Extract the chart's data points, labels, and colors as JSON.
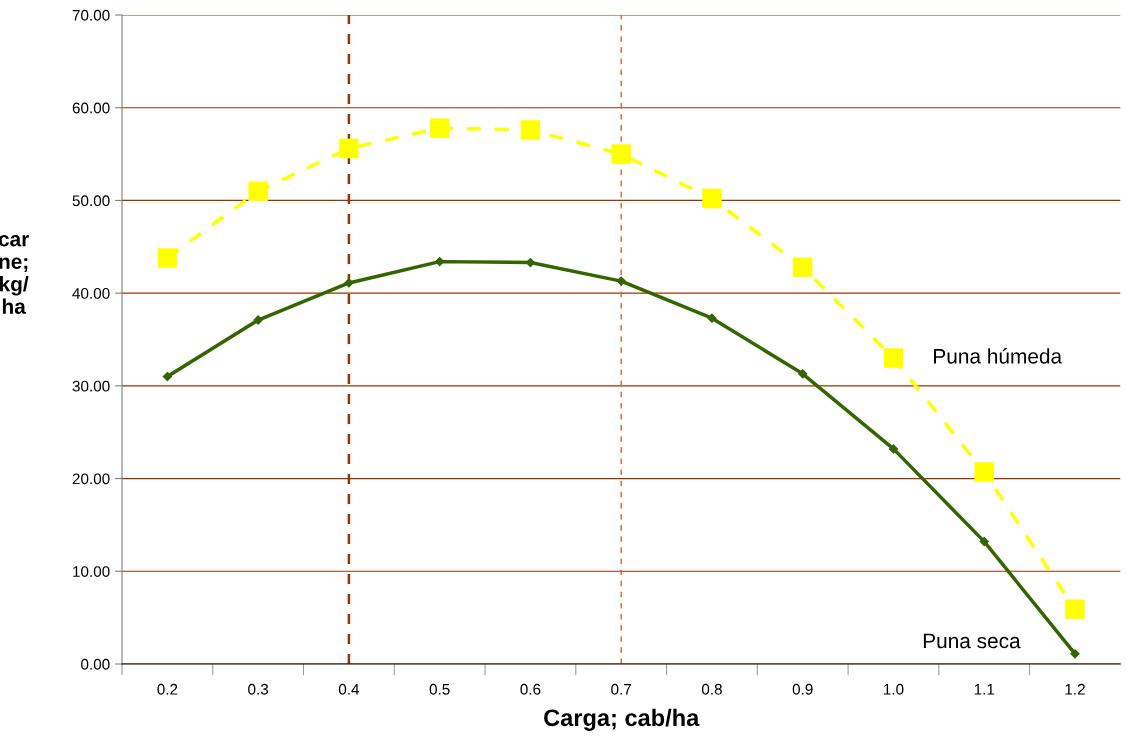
{
  "chart_data": {
    "type": "line",
    "xlabel": "Carga; cab/ha",
    "ylabel": "car\nne;\nkg/\nha",
    "categories": [
      "0.2",
      "0.3",
      "0.4",
      "0.5",
      "0.6",
      "0.7",
      "0.8",
      "0.9",
      "1.0",
      "1.1",
      "1.2"
    ],
    "series": [
      {
        "name": "Puna húmeda",
        "color": "#ffff00",
        "marker": "square",
        "line_style": "dashed",
        "values": [
          43.8,
          51.0,
          55.6,
          57.8,
          57.6,
          55.0,
          50.2,
          42.8,
          33.0,
          20.7,
          5.9
        ]
      },
      {
        "name": "Puna seca",
        "color": "#336600",
        "marker": "diamond",
        "line_style": "solid",
        "values": [
          31.0,
          37.1,
          41.1,
          43.4,
          43.3,
          41.3,
          37.3,
          31.3,
          23.2,
          13.2,
          1.1
        ]
      }
    ],
    "ylim": [
      0,
      70
    ],
    "yticks": [
      {
        "value": 0,
        "label": "0.00"
      },
      {
        "value": 10,
        "label": "10.00"
      },
      {
        "value": 20,
        "label": "20.00"
      },
      {
        "value": 30,
        "label": "30.00"
      },
      {
        "value": 40,
        "label": "40.00"
      },
      {
        "value": 50,
        "label": "50.00"
      },
      {
        "value": 60,
        "label": "60.00"
      },
      {
        "value": 70,
        "label": "70.00"
      }
    ],
    "grid": "y",
    "legend": false,
    "ref_lines": [
      {
        "axis": "x",
        "value": "0.4",
        "color": "#993300",
        "line_style": "dashed"
      },
      {
        "axis": "x",
        "value": "0.7",
        "color": "#cc6633",
        "line_style": "dashed"
      }
    ]
  }
}
